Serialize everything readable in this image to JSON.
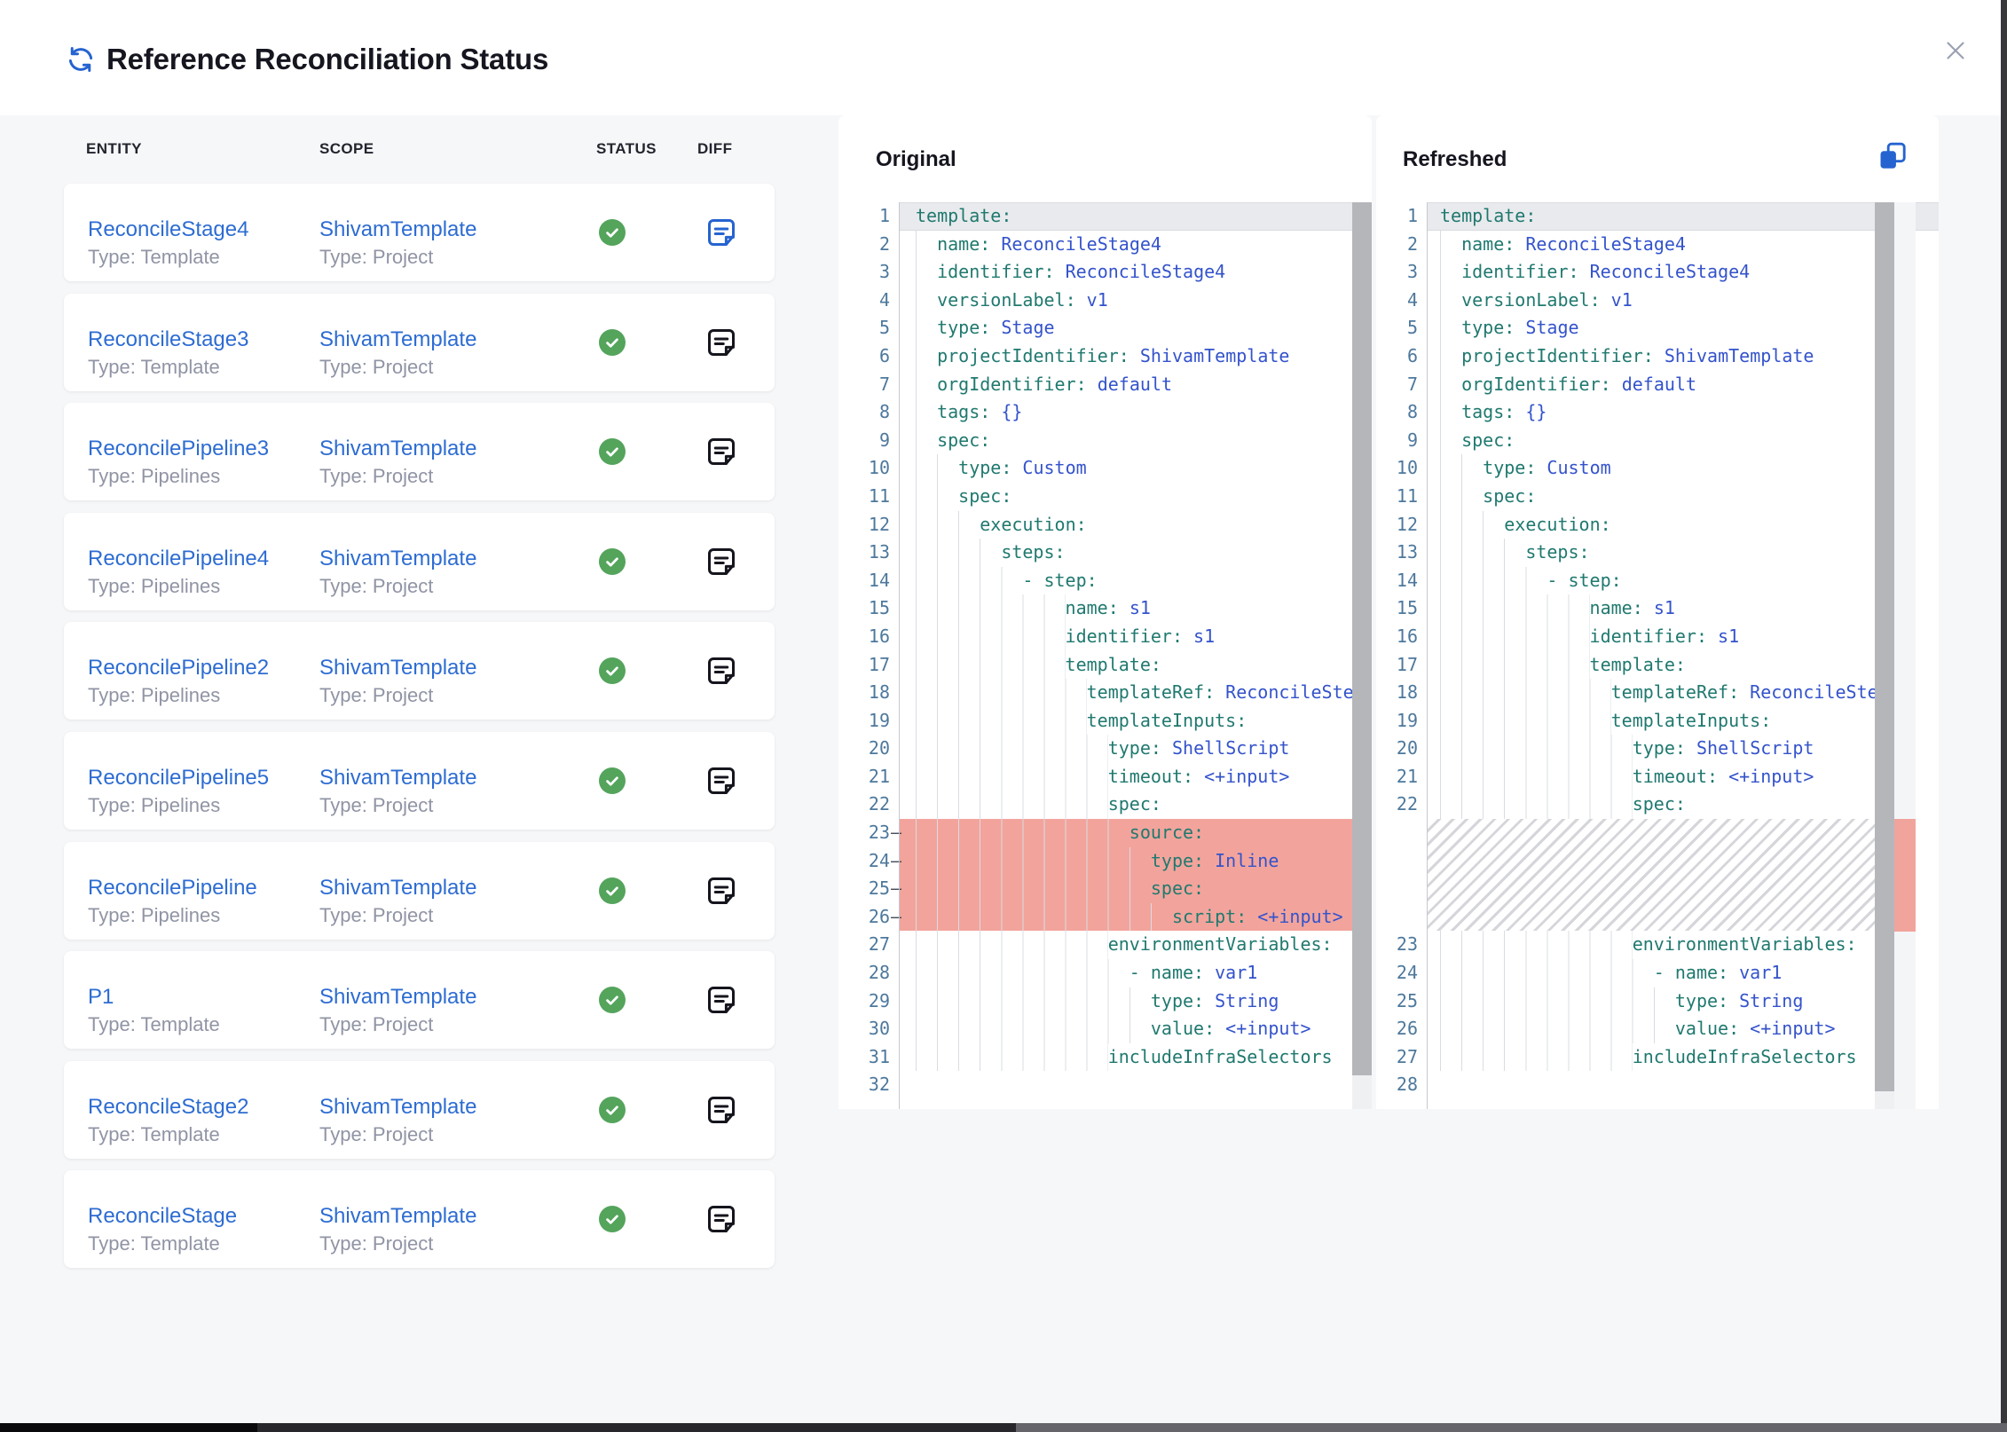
{
  "header": {
    "title": "Reference Reconciliation Status"
  },
  "icons": {
    "refresh": "refresh-icon",
    "close": "close-icon",
    "copy": "copy-icon",
    "status_success": "check-circle-icon",
    "diff": "diff-note-icon"
  },
  "colors": {
    "accent_blue": "#2563d0",
    "link_blue": "#2d6cd2",
    "success_green": "#54a45c",
    "removed_bg": "#f2a49c",
    "code_key": "#20796f",
    "code_value": "#3453cb",
    "line_number": "#4d789c",
    "muted_text": "#9094a4"
  },
  "table": {
    "columns": [
      "ENTITY",
      "SCOPE",
      "STATUS",
      "DIFF"
    ],
    "rows": [
      {
        "entity": "ReconcileStage4",
        "entity_type": "Type: Template",
        "scope": "ShivamTemplate",
        "scope_type": "Type: Project",
        "status": "success",
        "diff_active": true
      },
      {
        "entity": "ReconcileStage3",
        "entity_type": "Type: Template",
        "scope": "ShivamTemplate",
        "scope_type": "Type: Project",
        "status": "success",
        "diff_active": false
      },
      {
        "entity": "ReconcilePipeline3",
        "entity_type": "Type: Pipelines",
        "scope": "ShivamTemplate",
        "scope_type": "Type: Project",
        "status": "success",
        "diff_active": false
      },
      {
        "entity": "ReconcilePipeline4",
        "entity_type": "Type: Pipelines",
        "scope": "ShivamTemplate",
        "scope_type": "Type: Project",
        "status": "success",
        "diff_active": false
      },
      {
        "entity": "ReconcilePipeline2",
        "entity_type": "Type: Pipelines",
        "scope": "ShivamTemplate",
        "scope_type": "Type: Project",
        "status": "success",
        "diff_active": false
      },
      {
        "entity": "ReconcilePipeline5",
        "entity_type": "Type: Pipelines",
        "scope": "ShivamTemplate",
        "scope_type": "Type: Project",
        "status": "success",
        "diff_active": false
      },
      {
        "entity": "ReconcilePipeline",
        "entity_type": "Type: Pipelines",
        "scope": "ShivamTemplate",
        "scope_type": "Type: Project",
        "status": "success",
        "diff_active": false
      },
      {
        "entity": "P1",
        "entity_type": "Type: Template",
        "scope": "ShivamTemplate",
        "scope_type": "Type: Project",
        "status": "success",
        "diff_active": false
      },
      {
        "entity": "ReconcileStage2",
        "entity_type": "Type: Template",
        "scope": "ShivamTemplate",
        "scope_type": "Type: Project",
        "status": "success",
        "diff_active": false
      },
      {
        "entity": "ReconcileStage",
        "entity_type": "Type: Template",
        "scope": "ShivamTemplate",
        "scope_type": "Type: Project",
        "status": "success",
        "diff_active": false
      }
    ]
  },
  "diff": {
    "original_title": "Original",
    "refreshed_title": "Refreshed",
    "removed_marker": "–",
    "original_lines": [
      {
        "n": 1,
        "i": 0,
        "k": "template:",
        "cur": true
      },
      {
        "n": 2,
        "i": 2,
        "k": "name:",
        "v": "ReconcileStage4"
      },
      {
        "n": 3,
        "i": 2,
        "k": "identifier:",
        "v": "ReconcileStage4"
      },
      {
        "n": 4,
        "i": 2,
        "k": "versionLabel:",
        "v": "v1"
      },
      {
        "n": 5,
        "i": 2,
        "k": "type:",
        "v": "Stage"
      },
      {
        "n": 6,
        "i": 2,
        "k": "projectIdentifier:",
        "v": "ShivamTemplate"
      },
      {
        "n": 7,
        "i": 2,
        "k": "orgIdentifier:",
        "v": "default"
      },
      {
        "n": 8,
        "i": 2,
        "k": "tags:",
        "v": "{}"
      },
      {
        "n": 9,
        "i": 2,
        "k": "spec:"
      },
      {
        "n": 10,
        "i": 4,
        "k": "type:",
        "v": "Custom"
      },
      {
        "n": 11,
        "i": 4,
        "k": "spec:"
      },
      {
        "n": 12,
        "i": 6,
        "k": "execution:"
      },
      {
        "n": 13,
        "i": 8,
        "k": "steps:"
      },
      {
        "n": 14,
        "i": 10,
        "k": "- step:"
      },
      {
        "n": 15,
        "i": 14,
        "k": "name:",
        "v": "s1"
      },
      {
        "n": 16,
        "i": 14,
        "k": "identifier:",
        "v": "s1"
      },
      {
        "n": 17,
        "i": 14,
        "k": "template:"
      },
      {
        "n": 18,
        "i": 16,
        "k": "templateRef:",
        "v": "ReconcileStep"
      },
      {
        "n": 19,
        "i": 16,
        "k": "templateInputs:"
      },
      {
        "n": 20,
        "i": 18,
        "k": "type:",
        "v": "ShellScript"
      },
      {
        "n": 21,
        "i": 18,
        "k": "timeout:",
        "v": "<+input>"
      },
      {
        "n": 22,
        "i": 18,
        "k": "spec:"
      },
      {
        "n": 23,
        "i": 20,
        "k": "source:",
        "removed": true
      },
      {
        "n": 24,
        "i": 22,
        "k": "type:",
        "v": "Inline",
        "removed": true
      },
      {
        "n": 25,
        "i": 22,
        "k": "spec:",
        "removed": true
      },
      {
        "n": 26,
        "i": 24,
        "k": "script:",
        "v": "<+input>",
        "removed": true
      },
      {
        "n": 27,
        "i": 18,
        "k": "environmentVariables:"
      },
      {
        "n": 28,
        "i": 20,
        "k": "- name:",
        "v": "var1"
      },
      {
        "n": 29,
        "i": 22,
        "k": "type:",
        "v": "String"
      },
      {
        "n": 30,
        "i": 22,
        "k": "value:",
        "v": "<+input>"
      },
      {
        "n": 31,
        "i": 18,
        "k": "includeInfraSelectors"
      },
      {
        "n": 32,
        "i": 0,
        "k": ""
      }
    ],
    "refreshed_lines": [
      {
        "n": 1,
        "i": 0,
        "k": "template:",
        "cur": true
      },
      {
        "n": 2,
        "i": 2,
        "k": "name:",
        "v": "ReconcileStage4"
      },
      {
        "n": 3,
        "i": 2,
        "k": "identifier:",
        "v": "ReconcileStage4"
      },
      {
        "n": 4,
        "i": 2,
        "k": "versionLabel:",
        "v": "v1"
      },
      {
        "n": 5,
        "i": 2,
        "k": "type:",
        "v": "Stage"
      },
      {
        "n": 6,
        "i": 2,
        "k": "projectIdentifier:",
        "v": "ShivamTemplate"
      },
      {
        "n": 7,
        "i": 2,
        "k": "orgIdentifier:",
        "v": "default"
      },
      {
        "n": 8,
        "i": 2,
        "k": "tags:",
        "v": "{}"
      },
      {
        "n": 9,
        "i": 2,
        "k": "spec:"
      },
      {
        "n": 10,
        "i": 4,
        "k": "type:",
        "v": "Custom"
      },
      {
        "n": 11,
        "i": 4,
        "k": "spec:"
      },
      {
        "n": 12,
        "i": 6,
        "k": "execution:"
      },
      {
        "n": 13,
        "i": 8,
        "k": "steps:"
      },
      {
        "n": 14,
        "i": 10,
        "k": "- step:"
      },
      {
        "n": 15,
        "i": 14,
        "k": "name:",
        "v": "s1"
      },
      {
        "n": 16,
        "i": 14,
        "k": "identifier:",
        "v": "s1"
      },
      {
        "n": 17,
        "i": 14,
        "k": "template:"
      },
      {
        "n": 18,
        "i": 16,
        "k": "templateRef:",
        "v": "ReconcileStep"
      },
      {
        "n": 19,
        "i": 16,
        "k": "templateInputs:"
      },
      {
        "n": 20,
        "i": 18,
        "k": "type:",
        "v": "ShellScript"
      },
      {
        "n": 21,
        "i": 18,
        "k": "timeout:",
        "v": "<+input>"
      },
      {
        "n": 22,
        "i": 18,
        "k": "spec:"
      },
      {
        "hatch": true,
        "h": 4
      },
      {
        "n": 23,
        "i": 18,
        "k": "environmentVariables:"
      },
      {
        "n": 24,
        "i": 20,
        "k": "- name:",
        "v": "var1"
      },
      {
        "n": 25,
        "i": 22,
        "k": "type:",
        "v": "String"
      },
      {
        "n": 26,
        "i": 22,
        "k": "value:",
        "v": "<+input>"
      },
      {
        "n": 27,
        "i": 18,
        "k": "includeInfraSelectors"
      },
      {
        "n": 28,
        "i": 0,
        "k": ""
      }
    ]
  }
}
